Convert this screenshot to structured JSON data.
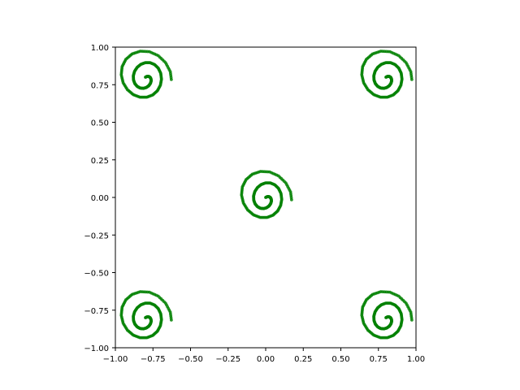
{
  "chart_data": {
    "type": "scatter",
    "title": "",
    "xlabel": "",
    "ylabel": "",
    "xlim": [
      -1.0,
      1.0
    ],
    "ylim": [
      -1.0,
      1.0
    ],
    "grid": false,
    "aspect": "equal",
    "x_ticks": [
      "−1.00",
      "−0.75",
      "−0.50",
      "−0.25",
      "0.00",
      "0.25",
      "0.50",
      "0.75",
      "1.00"
    ],
    "y_ticks": [
      "−1.00",
      "−0.75",
      "−0.50",
      "−0.25",
      "0.00",
      "0.25",
      "0.50",
      "0.75",
      "1.00"
    ],
    "marker_color": "#008000",
    "series": [
      {
        "spiral_centers": [
          [
            -0.8,
            0.8
          ],
          [
            0.8,
            0.8
          ],
          [
            0.0,
            0.0
          ],
          [
            -0.8,
            -0.8
          ],
          [
            0.8,
            -0.8
          ]
        ],
        "spiral_points": [
          [
            0.0,
            0.0
          ],
          [
            0.0106,
            0.0052
          ],
          [
            0.0214,
            0.0055
          ],
          [
            0.0307,
            0.0
          ],
          [
            0.0368,
            -0.0107
          ],
          [
            0.038,
            -0.0252
          ],
          [
            0.0332,
            -0.0414
          ],
          [
            0.0223,
            -0.0568
          ],
          [
            0.0061,
            -0.0685
          ],
          [
            -0.0136,
            -0.0742
          ],
          [
            -0.0346,
            -0.0722
          ],
          [
            -0.0544,
            -0.0617
          ],
          [
            -0.0701,
            -0.0432
          ],
          [
            -0.0794,
            -0.0184
          ],
          [
            -0.0804,
            0.01
          ],
          [
            -0.0722,
            0.0391
          ],
          [
            -0.0551,
            0.0655
          ],
          [
            -0.0302,
            0.0857
          ],
          [
            -0.0005,
            0.0967
          ],
          [
            0.0311,
            0.0964
          ],
          [
            0.061,
            0.0839
          ],
          [
            0.0856,
            0.0597
          ],
          [
            0.1017,
            0.0262
          ],
          [
            0.1068,
            -0.0131
          ],
          [
            0.0995,
            -0.0536
          ],
          [
            0.0797,
            -0.0902
          ],
          [
            0.0486,
            -0.1181
          ],
          [
            0.0088,
            -0.1333
          ],
          [
            -0.036,
            -0.133
          ],
          [
            -0.0809,
            -0.116
          ],
          [
            -0.12,
            -0.083
          ],
          [
            -0.1481,
            -0.0373
          ],
          [
            -0.1607,
            0.0159
          ],
          [
            -0.1551,
            0.0701
          ],
          [
            -0.1305,
            0.1186
          ],
          [
            -0.0886,
            0.1548
          ],
          [
            -0.0339,
            0.173
          ],
          [
            0.0268,
            0.1695
          ],
          [
            0.0853,
            0.1432
          ],
          [
            0.1339,
            0.0968
          ],
          [
            0.1653,
            0.037
          ],
          [
            0.1741,
            -0.0285
          ]
        ]
      }
    ]
  }
}
